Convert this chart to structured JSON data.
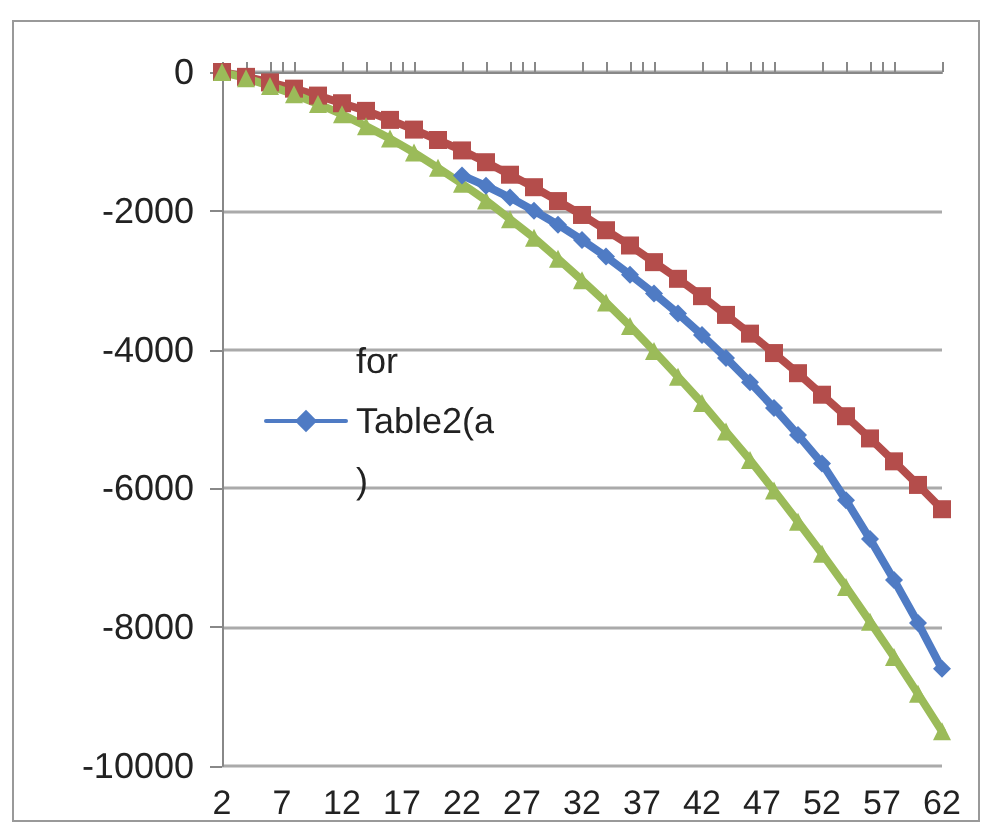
{
  "chart_data": {
    "type": "line",
    "x": [
      2,
      4,
      6,
      8,
      10,
      12,
      14,
      16,
      18,
      20,
      22,
      24,
      26,
      28,
      30,
      32,
      34,
      36,
      38,
      40,
      42,
      44,
      46,
      48,
      50,
      52,
      54,
      56,
      58,
      60,
      62
    ],
    "series": [
      {
        "name": "for Table2(a)",
        "color": "#4f7bc4",
        "marker": "diamond",
        "values": [
          null,
          null,
          null,
          null,
          null,
          null,
          null,
          null,
          null,
          null,
          -1490,
          -1640,
          -1810,
          -2000,
          -2200,
          -2420,
          -2660,
          -2920,
          -3190,
          -3480,
          -3790,
          -4120,
          -4470,
          -4840,
          -5230,
          -5640,
          -6170,
          -6730,
          -7320,
          -7940,
          -8600
        ]
      },
      {
        "color": "#b44d4b",
        "marker": "square",
        "values": [
          0,
          -70,
          -150,
          -240,
          -340,
          -450,
          -560,
          -690,
          -830,
          -980,
          -1130,
          -1300,
          -1480,
          -1660,
          -1860,
          -2060,
          -2280,
          -2500,
          -2740,
          -2980,
          -3230,
          -3500,
          -3770,
          -4050,
          -4340,
          -4650,
          -4960,
          -5280,
          -5610,
          -5950,
          -6300
        ]
      },
      {
        "color": "#9bbb59",
        "marker": "triangle",
        "values": [
          0,
          -90,
          -200,
          -320,
          -460,
          -610,
          -780,
          -960,
          -1160,
          -1380,
          -1610,
          -1850,
          -2120,
          -2390,
          -2690,
          -3000,
          -3320,
          -3660,
          -4020,
          -4390,
          -4770,
          -5180,
          -5590,
          -6030,
          -6480,
          -6940,
          -7420,
          -7920,
          -8430,
          -8960,
          -9500
        ]
      }
    ],
    "xlim": [
      2,
      62
    ],
    "xticks": [
      2,
      7,
      12,
      17,
      22,
      27,
      32,
      37,
      42,
      47,
      52,
      57,
      62
    ],
    "ylim": [
      -10000,
      0
    ],
    "yticks": [
      -10000,
      -8000,
      -6000,
      -4000,
      -2000,
      0
    ],
    "grid": "y",
    "legend": "left"
  }
}
